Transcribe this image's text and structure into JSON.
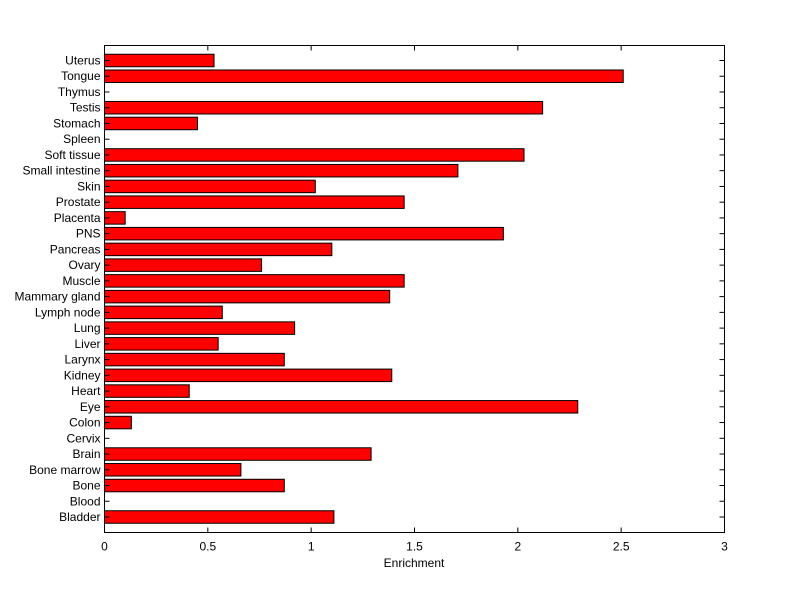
{
  "chart_data": {
    "type": "bar",
    "orientation": "horizontal",
    "title": "",
    "xlabel": "Enrichment",
    "ylabel": "",
    "xlim": [
      0,
      3
    ],
    "xticks": [
      0,
      0.5,
      1,
      1.5,
      2,
      2.5,
      3
    ],
    "xtick_labels": [
      "0",
      "0.5",
      "1",
      "1.5",
      "2",
      "2.5",
      "3"
    ],
    "grid": false,
    "legend": "none",
    "bar_color": "#ff0000",
    "bar_edge_color": "#000000",
    "categories": [
      "Bladder",
      "Blood",
      "Bone",
      "Bone marrow",
      "Brain",
      "Cervix",
      "Colon",
      "Eye",
      "Heart",
      "Kidney",
      "Larynx",
      "Liver",
      "Lung",
      "Lymph node",
      "Mammary gland",
      "Muscle",
      "Ovary",
      "Pancreas",
      "PNS",
      "Placenta",
      "Prostate",
      "Skin",
      "Small intestine",
      "Soft tissue",
      "Spleen",
      "Stomach",
      "Testis",
      "Thymus",
      "Tongue",
      "Uterus"
    ],
    "values": [
      1.11,
      0,
      0.87,
      0.66,
      1.29,
      0,
      0.13,
      2.29,
      0.41,
      1.39,
      0.87,
      0.55,
      0.92,
      0.57,
      1.38,
      1.45,
      0.76,
      1.1,
      1.93,
      0.1,
      1.45,
      1.02,
      1.71,
      2.03,
      0,
      0.45,
      2.12,
      0,
      2.51,
      0.53
    ]
  }
}
